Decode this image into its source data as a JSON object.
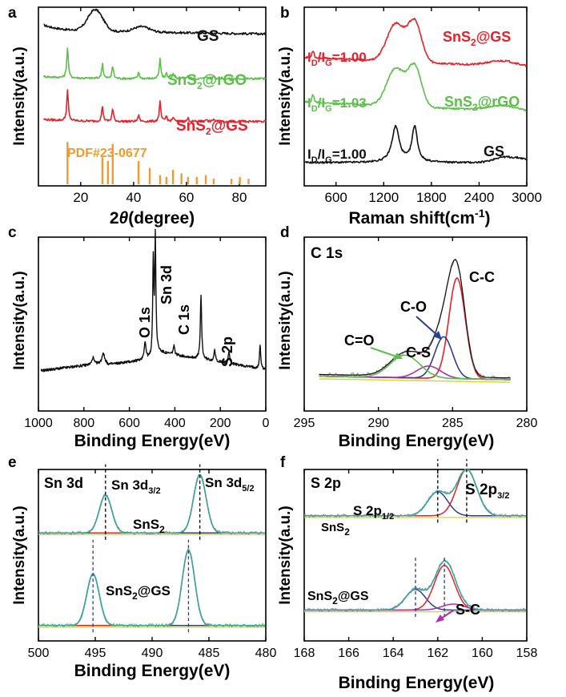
{
  "colors": {
    "black": "#111111",
    "green": "#5bbf49",
    "red": "#e8202a",
    "orange": "#f39a2b",
    "blue": "#2b3d9a",
    "cyan": "#2fa8a0",
    "magenta": "#b02fb0",
    "yellow": "#d6d62e",
    "gray": "#999999"
  },
  "chart_data": [
    {
      "id": "a",
      "panel_letter": "a",
      "type": "line",
      "xlabel_prefix": "2",
      "xlabel_theta": "θ",
      "xlabel_suffix": "(degree)",
      "ylabel": "Intensity(a.u.)",
      "xlim": [
        4,
        90
      ],
      "xticks": [
        20,
        40,
        60,
        80
      ],
      "series": [
        {
          "name": "GS",
          "color": "black",
          "baseline": 0.87,
          "profile": "gs_xrd"
        },
        {
          "name": "SnS2@rGO",
          "color": "green",
          "baseline": 0.6,
          "profile": "sns2_xrd"
        },
        {
          "name": "SnS2@GS",
          "color": "red",
          "baseline": 0.36,
          "profile": "sns2_xrd"
        }
      ],
      "reference": {
        "label": "PDF#23-0677",
        "color": "orange",
        "positions": [
          15.0,
          28.2,
          30.3,
          32.1,
          41.9,
          46.1,
          50.0,
          52.4,
          54.9,
          58.1,
          60.6,
          63.9,
          67.3,
          70.3,
          77.0,
          80.2,
          83.5
        ]
      },
      "labels": [
        {
          "text": "GS",
          "sub": "",
          "after": "",
          "color": "black"
        },
        {
          "text": "SnS",
          "sub": "2",
          "after": "@rGO",
          "color": "green"
        },
        {
          "text": "SnS",
          "sub": "2",
          "after": "@GS",
          "color": "red"
        }
      ]
    },
    {
      "id": "b",
      "panel_letter": "b",
      "type": "line",
      "xlabel": "Raman shift(cm",
      "xlabel_sup": "-1",
      "xlabel_end": ")",
      "ylabel": "Intensity(a.u.)",
      "xlim": [
        200,
        3000
      ],
      "xticks": [
        600,
        1200,
        1800,
        2400,
        3000
      ],
      "series": [
        {
          "name": "SnS2@GS",
          "color": "red",
          "ratio": "1.00"
        },
        {
          "name": "SnS2@rGO",
          "color": "green",
          "ratio": "1.03"
        },
        {
          "name": "GS",
          "color": "black",
          "ratio": "1.00"
        }
      ],
      "labels": [
        {
          "text": "SnS",
          "sub": "2",
          "after": "@GS",
          "color": "red"
        },
        {
          "text": "SnS",
          "sub": "2",
          "after": "@rGO",
          "color": "green"
        },
        {
          "text": "GS",
          "sub": "",
          "after": "",
          "color": "black"
        }
      ],
      "ratio_prefix": "I",
      "ratio_subD": "D",
      "ratio_mid": "/I",
      "ratio_subG": "G",
      "ratio_eq": "="
    },
    {
      "id": "c",
      "panel_letter": "c",
      "type": "line",
      "xlabel": "Binding Energy(eV)",
      "ylabel": "Intensity(a.u.)",
      "xlim": [
        1000,
        0
      ],
      "xticks": [
        1000,
        800,
        600,
        400,
        200,
        0
      ],
      "peak_labels": [
        "O 1s",
        "Sn 3d",
        "C 1s",
        "S 2p"
      ]
    },
    {
      "id": "d",
      "panel_letter": "d",
      "type": "line",
      "title": "C 1s",
      "xlabel": "Binding Energy(eV)",
      "ylabel": "Intensity(a.u.)",
      "xlim": [
        295,
        280
      ],
      "xticks": [
        295,
        290,
        285,
        280
      ],
      "components": [
        {
          "name": "C-C",
          "center": 284.7,
          "color": "red"
        },
        {
          "name": "C-O",
          "center": 285.6,
          "color": "blue"
        },
        {
          "name": "C-S",
          "center": 286.6,
          "color": "magenta"
        },
        {
          "name": "C=O",
          "center": 288.2,
          "color": "green"
        }
      ]
    },
    {
      "id": "e",
      "panel_letter": "e",
      "type": "line",
      "title": "Sn 3d",
      "xlabel": "Binding Energy(eV)",
      "ylabel": "Intensity(a.u.)",
      "xlim": [
        500,
        480
      ],
      "xticks": [
        500,
        495,
        490,
        485,
        480
      ],
      "peaks_top": [
        494.1,
        485.8
      ],
      "peaks_bottom": [
        495.2,
        486.8
      ],
      "label_32_main": "Sn 3d",
      "label_32_sub": "3/2",
      "label_52_main": "Sn 3d",
      "label_52_sub": "5/2",
      "sample_top": {
        "text": "SnS",
        "sub": "2",
        "after": ""
      },
      "sample_bottom": {
        "text": "SnS",
        "sub": "2",
        "after": "@GS"
      }
    },
    {
      "id": "f",
      "panel_letter": "f",
      "type": "line",
      "title": "S 2p",
      "xlabel": "Binding Energy(eV)",
      "ylabel": "Intensity(a.u.)",
      "xlim": [
        168,
        158
      ],
      "xticks": [
        168,
        166,
        164,
        162,
        160,
        158
      ],
      "peaks_top": [
        162.0,
        160.7
      ],
      "peaks_bottom": [
        163.0,
        161.7
      ],
      "sc_peak": 161.3,
      "label_12_main": "S 2p",
      "label_12_sub": "1/2",
      "label_32_main": "S 2p",
      "label_32_sub": "3/2",
      "sc_label": "S-C",
      "sample_top": {
        "text": "SnS",
        "sub": "2",
        "after": ""
      },
      "sample_bottom": {
        "text": "SnS",
        "sub": "2",
        "after": "@GS"
      }
    }
  ]
}
